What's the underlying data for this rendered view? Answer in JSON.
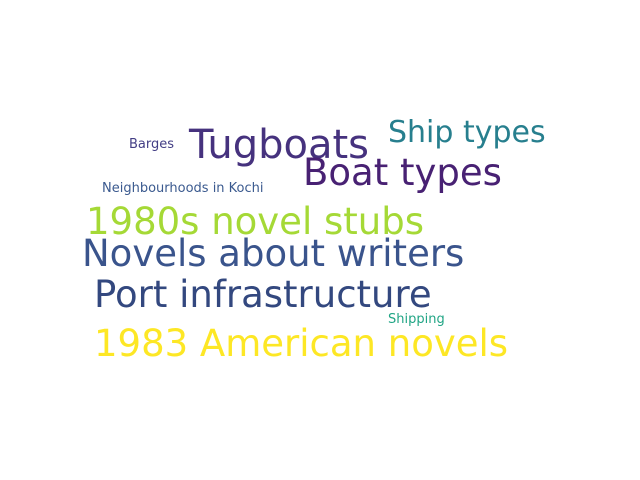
{
  "words": [
    {
      "id": "tugboats",
      "text": "Tugboats",
      "color": "#46327e"
    },
    {
      "id": "ship-types",
      "text": "Ship types",
      "color": "#277f8e"
    },
    {
      "id": "boat-types",
      "text": "Boat types",
      "color": "#482173"
    },
    {
      "id": "barges",
      "text": "Barges",
      "color": "#433e85"
    },
    {
      "id": "neighbourhoods",
      "text": "Neighbourhoods in Kochi",
      "color": "#3b5a8f"
    },
    {
      "id": "novel-stubs",
      "text": "1980s novel stubs",
      "color": "#a5d936"
    },
    {
      "id": "novels-writers",
      "text": "Novels about writers",
      "color": "#3a548c"
    },
    {
      "id": "port-infrastructure",
      "text": "Port infrastructure",
      "color": "#33487f"
    },
    {
      "id": "shipping",
      "text": "Shipping",
      "color": "#21a585"
    },
    {
      "id": "american-novels",
      "text": "1983 American novels",
      "color": "#fde725"
    }
  ]
}
